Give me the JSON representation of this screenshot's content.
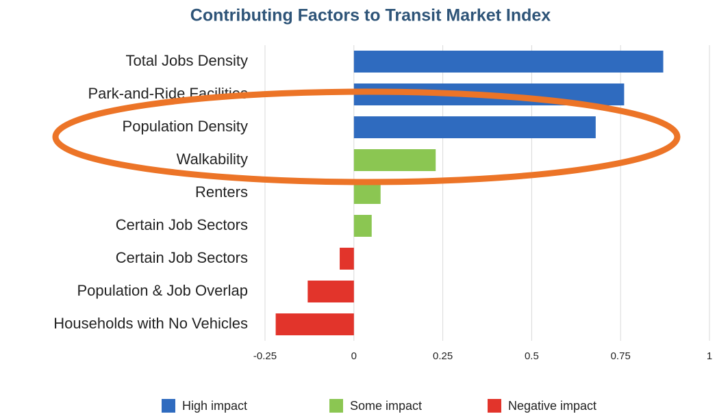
{
  "chart_data": {
    "type": "hbar",
    "title": "Contributing Factors to Transit Market Index",
    "categories": [
      "Total Jobs Density",
      "Park-and-Ride Facilities",
      "Population Density",
      "Walkability",
      "Renters",
      "Certain Job Sectors",
      "Certain Job Sectors",
      "Population & Job Overlap",
      "Households with No Vehicles"
    ],
    "values": [
      0.87,
      0.76,
      0.68,
      0.23,
      0.075,
      0.05,
      -0.04,
      -0.13,
      -0.22
    ],
    "colors": [
      "#2f6bbf",
      "#2f6bbf",
      "#2f6bbf",
      "#8bc652",
      "#8bc652",
      "#8bc652",
      "#e2342b",
      "#e2342b",
      "#e2342b"
    ],
    "xlim": [
      -0.25,
      1
    ],
    "xticks": [
      -0.25,
      0,
      0.25,
      0.5,
      0.75,
      1
    ],
    "grid": true,
    "legend": [
      {
        "name": "High impact",
        "color": "#2f6bbf"
      },
      {
        "name": "Some impact",
        "color": "#8bc652"
      },
      {
        "name": "Negative impact",
        "color": "#e2342b"
      }
    ]
  }
}
